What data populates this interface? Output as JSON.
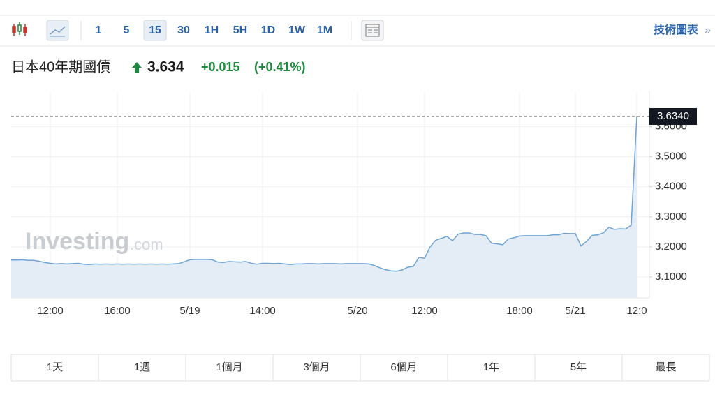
{
  "toolbar": {
    "intervals": [
      "1",
      "5",
      "15",
      "30",
      "1H",
      "5H",
      "1D",
      "1W",
      "1M"
    ],
    "active_interval": "15",
    "chart_link": "技術圖表",
    "chart_link_arrow": "»"
  },
  "header": {
    "name": "日本40年期國債",
    "price": "3.634",
    "change": "+0.015",
    "change_percent": "(+0.41%)"
  },
  "watermark": {
    "brand": "Investing",
    "suffix": ".com"
  },
  "chart_data": {
    "type": "area",
    "color": "#6fa3d3",
    "fill": "#e4edf6",
    "grid": true,
    "categories": [
      null,
      null,
      null,
      null,
      null,
      null,
      null,
      "12:00",
      null,
      null,
      null,
      null,
      null,
      null,
      null,
      null,
      null,
      null,
      null,
      "16:00",
      null,
      null,
      null,
      null,
      null,
      null,
      null,
      null,
      null,
      null,
      null,
      null,
      "5/19",
      null,
      null,
      null,
      null,
      null,
      null,
      null,
      null,
      null,
      null,
      null,
      null,
      "14:00",
      null,
      null,
      null,
      null,
      null,
      null,
      null,
      null,
      null,
      null,
      null,
      null,
      null,
      null,
      null,
      null,
      "5/20",
      null,
      null,
      null,
      null,
      null,
      null,
      null,
      null,
      null,
      null,
      null,
      "12:00",
      null,
      null,
      null,
      null,
      null,
      null,
      null,
      null,
      null,
      null,
      null,
      null,
      null,
      null,
      null,
      null,
      "18:00",
      null,
      null,
      null,
      null,
      null,
      null,
      null,
      null,
      null,
      "5/21",
      null,
      null,
      null,
      null,
      null,
      null,
      null,
      null,
      null,
      null,
      "12:0"
    ],
    "values": [
      3.156,
      3.156,
      3.157,
      3.155,
      3.155,
      3.152,
      3.148,
      3.145,
      3.143,
      3.144,
      3.143,
      3.144,
      3.145,
      3.142,
      3.141,
      3.143,
      3.142,
      3.143,
      3.142,
      3.143,
      3.142,
      3.143,
      3.142,
      3.143,
      3.142,
      3.143,
      3.142,
      3.143,
      3.142,
      3.143,
      3.144,
      3.15,
      3.157,
      3.158,
      3.158,
      3.158,
      3.157,
      3.149,
      3.148,
      3.151,
      3.15,
      3.149,
      3.151,
      3.145,
      3.142,
      3.145,
      3.145,
      3.144,
      3.145,
      3.143,
      3.141,
      3.143,
      3.143,
      3.144,
      3.144,
      3.143,
      3.144,
      3.144,
      3.144,
      3.143,
      3.144,
      3.144,
      3.144,
      3.144,
      3.143,
      3.138,
      3.13,
      3.124,
      3.12,
      3.119,
      3.123,
      3.132,
      3.135,
      3.165,
      3.162,
      3.2,
      3.222,
      3.228,
      3.235,
      3.22,
      3.242,
      3.246,
      3.246,
      3.241,
      3.241,
      3.237,
      3.212,
      3.21,
      3.207,
      3.226,
      3.23,
      3.236,
      3.237,
      3.237,
      3.237,
      3.237,
      3.237,
      3.24,
      3.24,
      3.245,
      3.244,
      3.244,
      3.203,
      3.218,
      3.238,
      3.24,
      3.246,
      3.265,
      3.258,
      3.26,
      3.259,
      3.272,
      3.634
    ],
    "ylim": [
      3.03,
      3.72
    ],
    "yticks": [
      {
        "value": 3.1,
        "label": "3.1000"
      },
      {
        "value": 3.2,
        "label": "3.2000"
      },
      {
        "value": 3.3,
        "label": "3.3000"
      },
      {
        "value": 3.4,
        "label": "3.4000"
      },
      {
        "value": 3.5,
        "label": "3.5000"
      },
      {
        "value": 3.6,
        "label": "3.6000"
      }
    ],
    "price_line": {
      "value": 3.634,
      "label": "3.6340"
    }
  },
  "ranges": [
    "1天",
    "1週",
    "1個月",
    "3個月",
    "6個月",
    "1年",
    "5年",
    "最長"
  ]
}
